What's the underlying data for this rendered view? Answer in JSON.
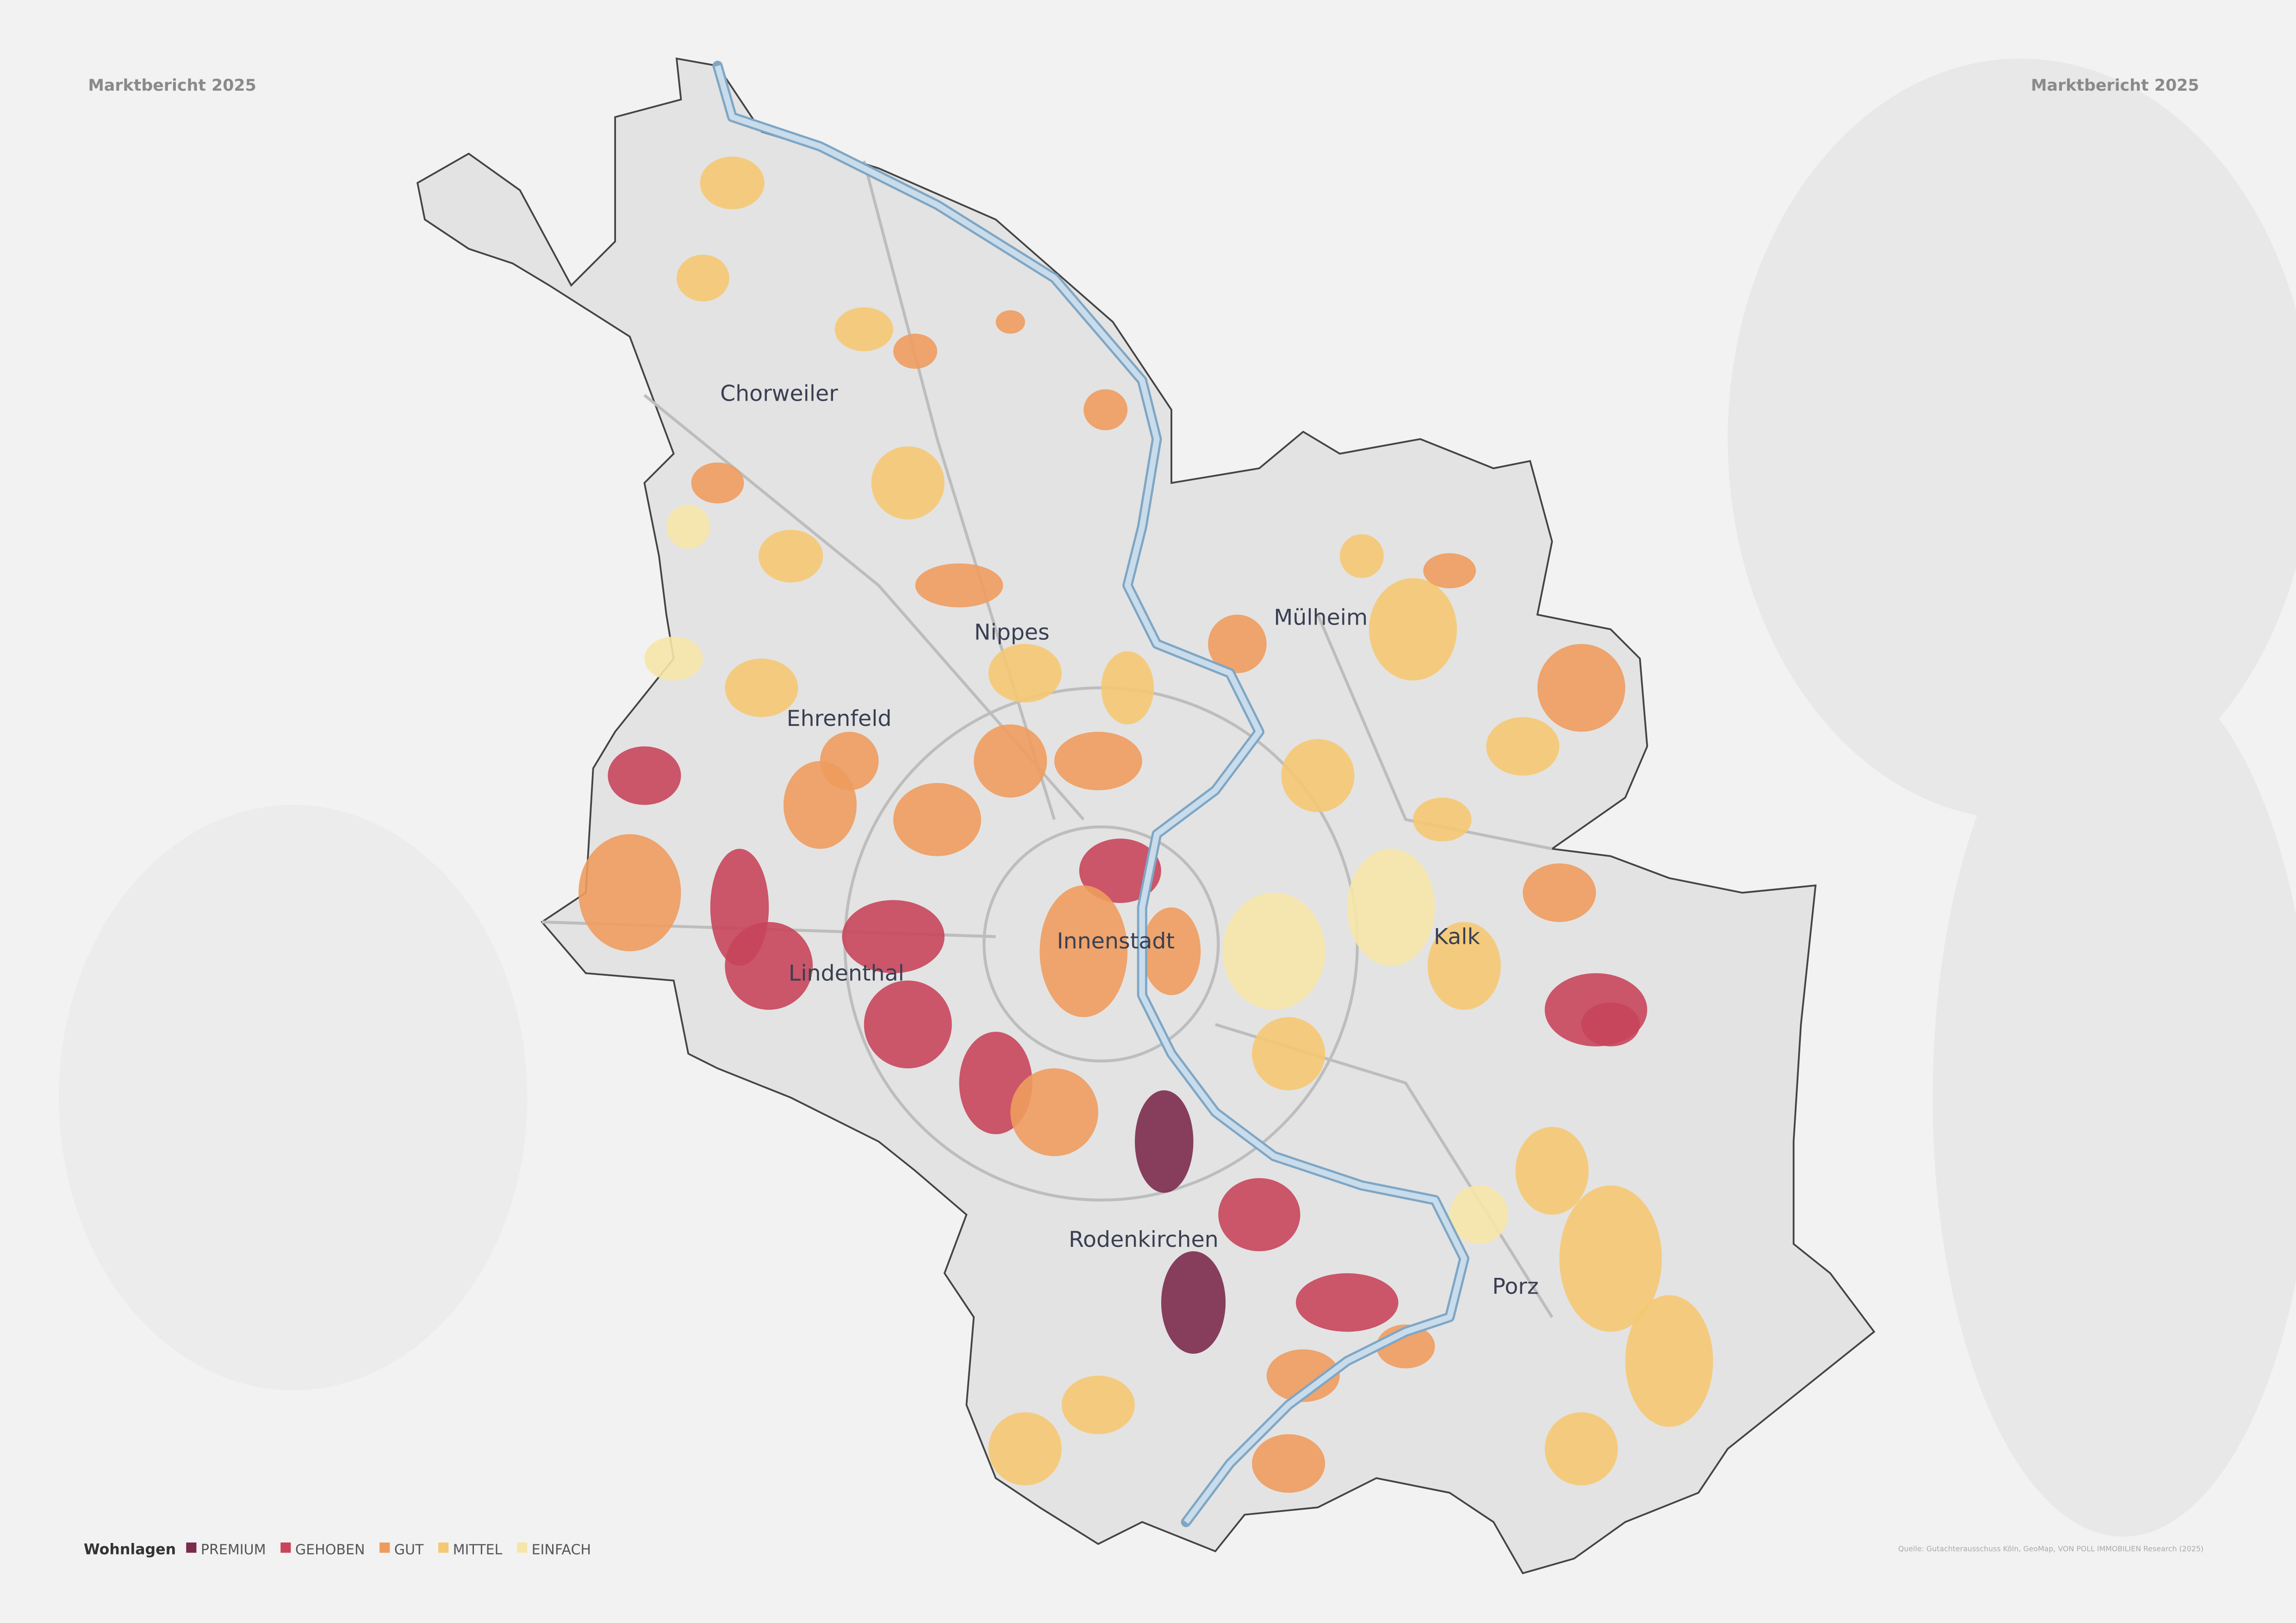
{
  "header": {
    "left": "Marktbericht 2025",
    "right": "Marktbericht 2025"
  },
  "districts": [
    "Chorweiler",
    "Nippes",
    "Mülheim",
    "Ehrenfeld",
    "Innenstadt",
    "Kalk",
    "Lindenthal",
    "Rodenkirchen",
    "Porz"
  ],
  "legend": {
    "title": "Wohnlagen",
    "items": [
      {
        "name": "PREMIUM",
        "color": "#7b2b4c"
      },
      {
        "name": "GEHOBEN",
        "color": "#c8455b"
      },
      {
        "name": "GUT",
        "color": "#ee9c5e"
      },
      {
        "name": "MITTEL",
        "color": "#f5c872"
      },
      {
        "name": "EINFACH",
        "color": "#f6e5a9"
      }
    ]
  },
  "source": "Quelle: Gutachterausschuss Köln, GeoMap, VON POLL IMMOBILIEN Research (2025)"
}
